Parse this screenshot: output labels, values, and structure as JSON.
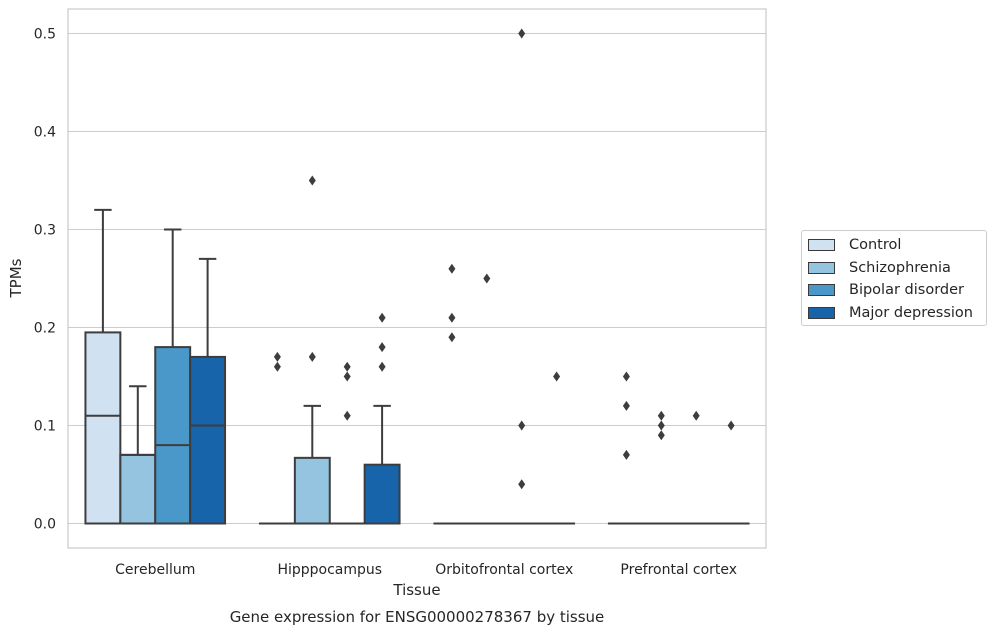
{
  "chart_data": {
    "type": "box",
    "caption": "Gene expression for ENSG00000278367 by tissue",
    "xlabel": "Tissue",
    "ylabel": "TPMs",
    "ylim": [
      -0.025,
      0.525
    ],
    "yticks": [
      0.0,
      0.1,
      0.2,
      0.3,
      0.4,
      0.5
    ],
    "ytick_labels": [
      "0.0",
      "0.1",
      "0.2",
      "0.3",
      "0.4",
      "0.5"
    ],
    "grid": true,
    "legend_position": "right",
    "categories": [
      "Cerebellum",
      "Hipppocampus",
      "Orbitofrontal cortex",
      "Prefrontal cortex"
    ],
    "series": [
      {
        "name": "Control",
        "color": "#d0e1f2",
        "boxes": [
          {
            "q1": 0.0,
            "median": 0.11,
            "q3": 0.195,
            "whisker_low": 0.0,
            "whisker_high": 0.32,
            "outliers": []
          },
          {
            "q1": 0.0,
            "median": 0.0,
            "q3": 0.0,
            "whisker_low": 0.0,
            "whisker_high": 0.0,
            "outliers": [
              0.16,
              0.17
            ]
          },
          {
            "q1": 0.0,
            "median": 0.0,
            "q3": 0.0,
            "whisker_low": 0.0,
            "whisker_high": 0.0,
            "outliers": [
              0.19,
              0.21,
              0.26
            ]
          },
          {
            "q1": 0.0,
            "median": 0.0,
            "q3": 0.0,
            "whisker_low": 0.0,
            "whisker_high": 0.0,
            "outliers": [
              0.07,
              0.12,
              0.15
            ]
          }
        ]
      },
      {
        "name": "Schizophrenia",
        "color": "#94c4df",
        "boxes": [
          {
            "q1": 0.0,
            "median": 0.07,
            "q3": 0.07,
            "whisker_low": 0.0,
            "whisker_high": 0.14,
            "outliers": []
          },
          {
            "q1": 0.0,
            "median": 0.0,
            "q3": 0.067,
            "whisker_low": 0.0,
            "whisker_high": 0.12,
            "outliers": [
              0.17,
              0.35
            ]
          },
          {
            "q1": 0.0,
            "median": 0.0,
            "q3": 0.0,
            "whisker_low": 0.0,
            "whisker_high": 0.0,
            "outliers": [
              0.25
            ]
          },
          {
            "q1": 0.0,
            "median": 0.0,
            "q3": 0.0,
            "whisker_low": 0.0,
            "whisker_high": 0.0,
            "outliers": [
              0.09,
              0.1,
              0.11
            ]
          }
        ]
      },
      {
        "name": "Bipolar disorder",
        "color": "#4a98c9",
        "boxes": [
          {
            "q1": 0.0,
            "median": 0.08,
            "q3": 0.18,
            "whisker_low": 0.0,
            "whisker_high": 0.3,
            "outliers": []
          },
          {
            "q1": 0.0,
            "median": 0.0,
            "q3": 0.0,
            "whisker_low": 0.0,
            "whisker_high": 0.0,
            "outliers": [
              0.11,
              0.15,
              0.16
            ]
          },
          {
            "q1": 0.0,
            "median": 0.0,
            "q3": 0.0,
            "whisker_low": 0.0,
            "whisker_high": 0.0,
            "outliers": [
              0.04,
              0.1,
              0.5
            ]
          },
          {
            "q1": 0.0,
            "median": 0.0,
            "q3": 0.0,
            "whisker_low": 0.0,
            "whisker_high": 0.0,
            "outliers": [
              0.11
            ]
          }
        ]
      },
      {
        "name": "Major depression",
        "color": "#1764ab",
        "boxes": [
          {
            "q1": 0.0,
            "median": 0.1,
            "q3": 0.17,
            "whisker_low": 0.0,
            "whisker_high": 0.27,
            "outliers": []
          },
          {
            "q1": 0.0,
            "median": 0.0,
            "q3": 0.06,
            "whisker_low": 0.0,
            "whisker_high": 0.12,
            "outliers": [
              0.16,
              0.18,
              0.21
            ]
          },
          {
            "q1": 0.0,
            "median": 0.0,
            "q3": 0.0,
            "whisker_low": 0.0,
            "whisker_high": 0.0,
            "outliers": [
              0.15
            ]
          },
          {
            "q1": 0.0,
            "median": 0.0,
            "q3": 0.0,
            "whisker_low": 0.0,
            "whisker_high": 0.0,
            "outliers": [
              0.1
            ]
          }
        ]
      }
    ]
  }
}
